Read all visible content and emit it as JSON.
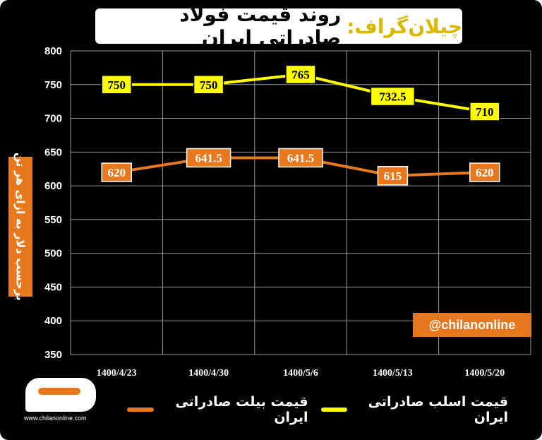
{
  "title": {
    "brand": "چیلان‌گراف:",
    "main": "روند قیمت فولاد صادراتی ایران"
  },
  "watermark": "@chilanonline",
  "logo": {
    "url": "www.chilanonline.com"
  },
  "colors": {
    "background": "#000000",
    "yellow": "#ffff00",
    "orange": "#e8781e",
    "grid": "#9a9a9a"
  },
  "chart_data": {
    "type": "line",
    "categories": [
      "1400/4/23",
      "1400/4/30",
      "1400/5/6",
      "1400/5/13",
      "1400/5/20"
    ],
    "ylabel": "برحسب دلار به ازای هر تن",
    "ylim": [
      350,
      800
    ],
    "yticks": [
      350,
      400,
      450,
      500,
      550,
      600,
      650,
      700,
      750,
      800
    ],
    "grid": true,
    "legend_position": "bottom",
    "series": [
      {
        "name": "قیمت اسلب صادراتی ایران",
        "color": "#ffff00",
        "values": [
          750,
          750,
          765,
          732.5,
          710
        ],
        "labels": [
          "750",
          "750",
          "765",
          "732.5",
          "710"
        ]
      },
      {
        "name": "قیمت بیلت صادراتی ایران",
        "color": "#e8781e",
        "values": [
          620,
          641.5,
          641.5,
          615,
          620
        ],
        "labels": [
          "620",
          "641.5",
          "641.5",
          "615",
          "620"
        ]
      }
    ]
  }
}
